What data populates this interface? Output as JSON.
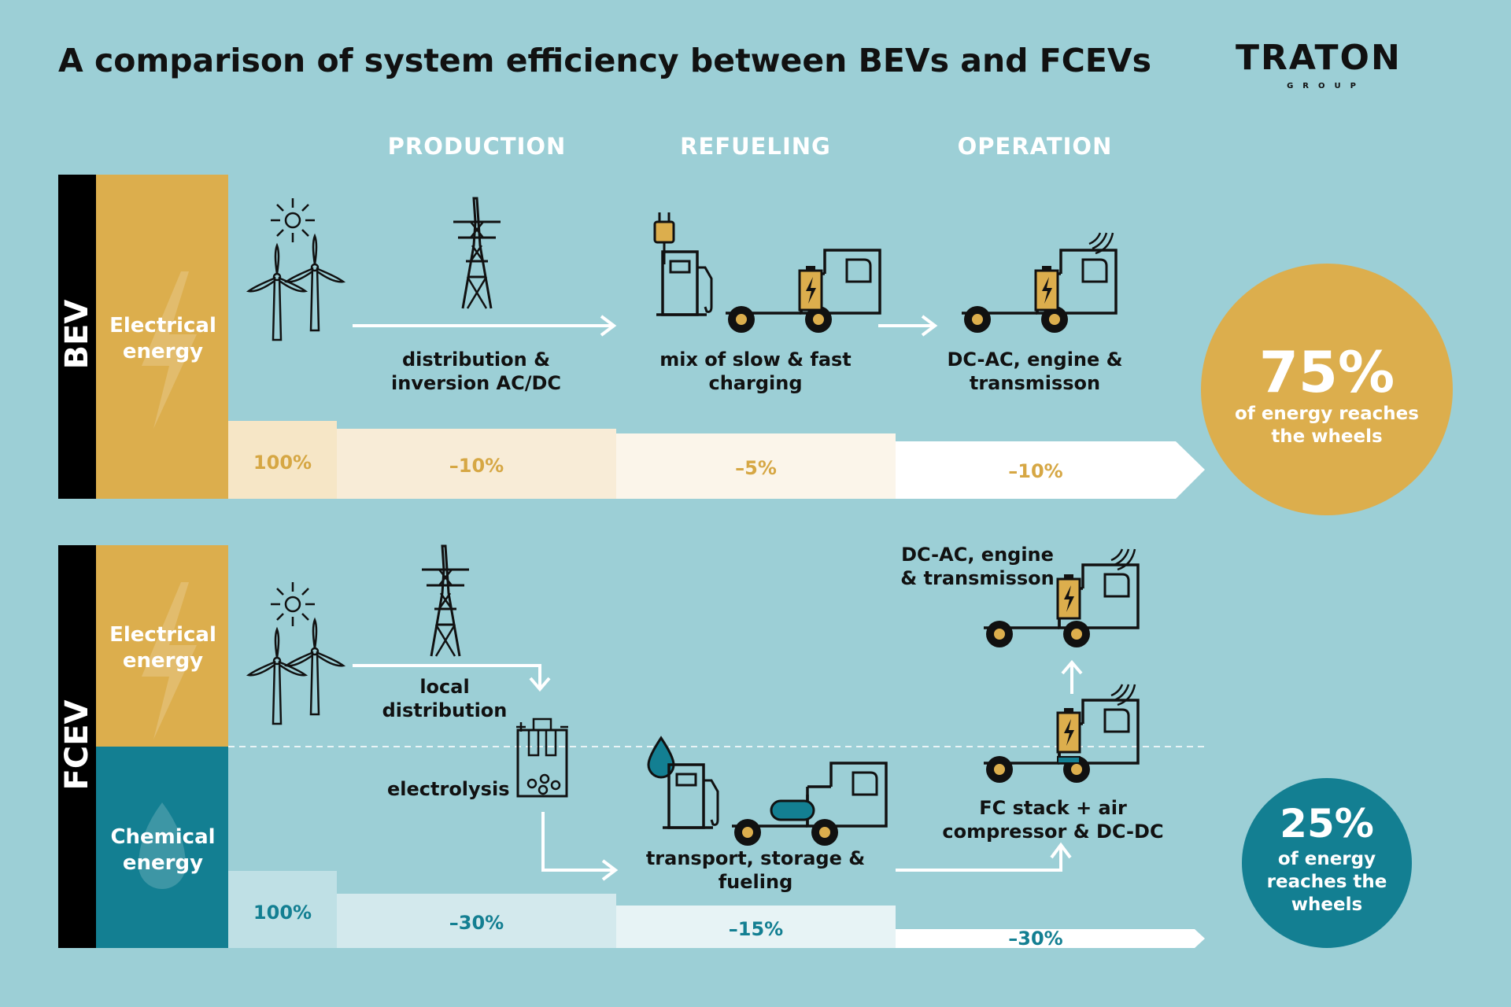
{
  "header": {
    "title": "A comparison of system efficiency between BEVs and FCEVs",
    "logo": "TRATON",
    "logo_sub": "GROUP"
  },
  "stages": [
    "PRODUCTION",
    "REFUELING",
    "OPERATION"
  ],
  "bev": {
    "side_label": "BEV",
    "energy_label": "Electrical energy",
    "steps": [
      {
        "label": "distribution & inversion AC/DC"
      },
      {
        "label": "mix of slow & fast charging"
      },
      {
        "label": "DC-AC, engine & transmisson"
      }
    ],
    "bar": [
      "100%",
      "–10%",
      "–5%",
      "–10%"
    ],
    "result_value": "75%",
    "result_text": "of energy reaches the wheels"
  },
  "fcev": {
    "side_label": "FCEV",
    "energy_electrical": "Electrical energy",
    "energy_chemical": "Chemical energy",
    "steps": {
      "local_distribution": "local distribution",
      "electrolysis": "electrolysis",
      "transport": "transport, storage & fueling",
      "fc_stack": "FC stack + air compressor & DC-DC",
      "operation": "DC-AC, engine & transmisson"
    },
    "bar": [
      "100%",
      "–30%",
      "–15%",
      "–30%"
    ],
    "result_value": "25%",
    "result_text": "of energy reaches the wheels"
  },
  "colors": {
    "background": "#9ccfd6",
    "gold": "#dcae4d",
    "teal": "#137f92",
    "black": "#000000"
  },
  "icons": [
    "sun-icon",
    "wind-turbine-icon",
    "power-pylon-icon",
    "plug-icon",
    "fuel-pump-icon",
    "truck-icon",
    "battery-icon",
    "water-drop-icon",
    "electrolysis-icon",
    "lightning-icon"
  ]
}
